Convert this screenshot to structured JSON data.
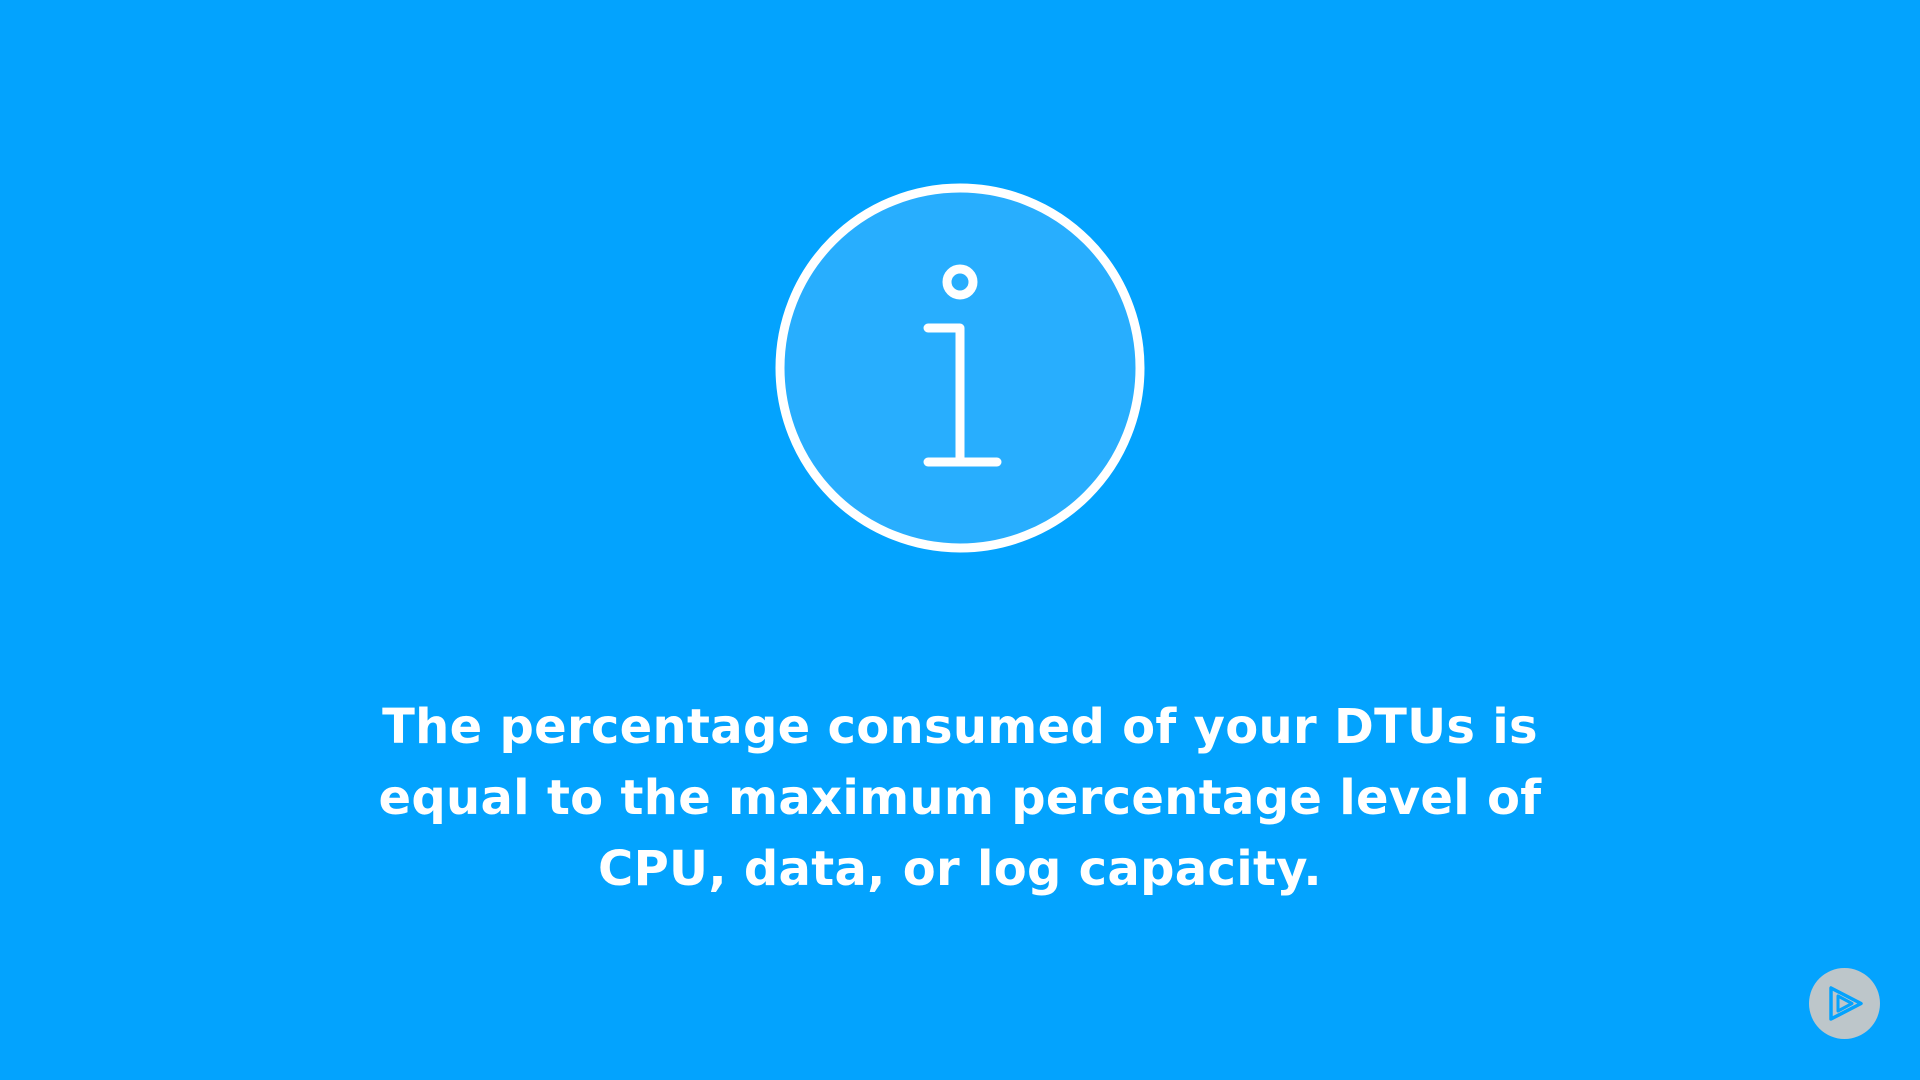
{
  "slide": {
    "icon": "info-icon",
    "message_lines": [
      "The percentage consumed of your DTUs is",
      "equal to the maximum percentage level of",
      "CPU, data, or log capacity."
    ],
    "badge_icon": "play-logo-icon"
  },
  "colors": {
    "background": "#03a3fe",
    "icon_fill": "#28aefe",
    "text": "#ffffff",
    "badge": "#c8c8c8",
    "badge_glyph": "#03a3fe"
  }
}
